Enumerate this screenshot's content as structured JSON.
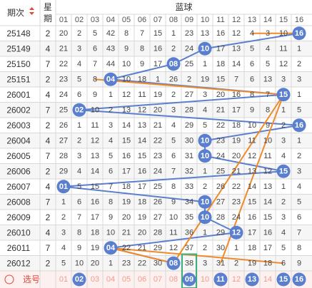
{
  "header": {
    "issue_label": "期次",
    "week_label_top": "星",
    "week_label_bottom": "期",
    "section_label": "蓝球",
    "columns": [
      "01",
      "02",
      "03",
      "04",
      "05",
      "06",
      "07",
      "08",
      "09",
      "10",
      "11",
      "12",
      "13",
      "14",
      "15",
      "16"
    ]
  },
  "rows": [
    {
      "issue": "25148",
      "week": "2",
      "cells": [
        "20",
        "2",
        "5",
        "42",
        "8",
        "7",
        "15",
        "1",
        "23",
        "13",
        "16",
        "12",
        "4",
        "3",
        "10",
        "16"
      ],
      "hit": 16
    },
    {
      "issue": "25149",
      "week": "4",
      "cells": [
        "21",
        "3",
        "6",
        "43",
        "9",
        "8",
        "16",
        "2",
        "24",
        "10",
        "17",
        "13",
        "5",
        "4",
        "11",
        "1"
      ],
      "hit": 10
    },
    {
      "issue": "25150",
      "week": "7",
      "cells": [
        "22",
        "4",
        "7",
        "44",
        "10",
        "9",
        "17",
        "08",
        "25",
        "1",
        "18",
        "14",
        "6",
        "5",
        "12",
        "2"
      ],
      "hit": 8
    },
    {
      "issue": "25151",
      "week": "2",
      "cells": [
        "23",
        "5",
        "8",
        "04",
        "10",
        "18",
        "1",
        "26",
        "2",
        "19",
        "15",
        "7",
        "6",
        "13",
        "3",
        "3"
      ],
      "hit": 4
    },
    {
      "issue": "26001",
      "week": "4",
      "cells": [
        "24",
        "6",
        "9",
        "1",
        "12",
        "11",
        "19",
        "2",
        "27",
        "3",
        "20",
        "16",
        "8",
        "7",
        "15",
        "1"
      ],
      "hit": 15
    },
    {
      "issue": "26002",
      "week": "7",
      "cells": [
        "25",
        "02",
        "10",
        "2",
        "13",
        "12",
        "20",
        "3",
        "28",
        "4",
        "21",
        "17",
        "9",
        "8",
        "1",
        "5"
      ],
      "hit": 2
    },
    {
      "issue": "26003",
      "week": "2",
      "cells": [
        "26",
        "1",
        "11",
        "3",
        "14",
        "13",
        "21",
        "4",
        "29",
        "5",
        "22",
        "18",
        "10",
        "9",
        "2",
        "16"
      ],
      "hit": 16
    },
    {
      "issue": "26004",
      "week": "4",
      "cells": [
        "27",
        "2",
        "12",
        "4",
        "15",
        "14",
        "22",
        "5",
        "30",
        "10",
        "23",
        "19",
        "11",
        "10",
        "3",
        "1"
      ],
      "hit": 10
    },
    {
      "issue": "26005",
      "week": "7",
      "cells": [
        "28",
        "3",
        "13",
        "5",
        "16",
        "15",
        "23",
        "6",
        "31",
        "10",
        "24",
        "20",
        "12",
        "11",
        "4",
        "2"
      ],
      "hit": 10
    },
    {
      "issue": "26006",
      "week": "2",
      "cells": [
        "29",
        "4",
        "14",
        "6",
        "17",
        "16",
        "24",
        "7",
        "32",
        "1",
        "25",
        "21",
        "13",
        "12",
        "15",
        "3"
      ],
      "hit": 15
    },
    {
      "issue": "26007",
      "week": "4",
      "cells": [
        "01",
        "5",
        "15",
        "7",
        "18",
        "17",
        "25",
        "8",
        "33",
        "2",
        "26",
        "22",
        "14",
        "13",
        "1",
        "4"
      ],
      "hit": 1
    },
    {
      "issue": "26008",
      "week": "7",
      "cells": [
        "1",
        "6",
        "16",
        "8",
        "19",
        "18",
        "26",
        "9",
        "34",
        "10",
        "27",
        "23",
        "15",
        "14",
        "2",
        "5"
      ],
      "hit": 10
    },
    {
      "issue": "26009",
      "week": "2",
      "cells": [
        "2",
        "7",
        "17",
        "9",
        "20",
        "19",
        "27",
        "10",
        "35",
        "10",
        "28",
        "24",
        "16",
        "15",
        "3",
        "6"
      ],
      "hit": 10
    },
    {
      "issue": "26010",
      "week": "4",
      "cells": [
        "3",
        "8",
        "18",
        "10",
        "21",
        "20",
        "28",
        "11",
        "36",
        "1",
        "29",
        "12",
        "17",
        "16",
        "4",
        "7"
      ],
      "hit": 12
    },
    {
      "issue": "26011",
      "week": "7",
      "cells": [
        "4",
        "9",
        "19",
        "04",
        "22",
        "21",
        "29",
        "12",
        "37",
        "2",
        "30",
        "1",
        "18",
        "17",
        "5",
        "8"
      ],
      "hit": 4
    },
    {
      "issue": "26012",
      "week": "2",
      "cells": [
        "5",
        "10",
        "20",
        "1",
        "23",
        "22",
        "30",
        "08",
        "38",
        "3",
        "31",
        "2",
        "19",
        "18",
        "6",
        "9"
      ],
      "hit": 8
    }
  ],
  "selector": {
    "label": "选号",
    "numbers": [
      "01",
      "02",
      "03",
      "04",
      "05",
      "06",
      "07",
      "08",
      "09",
      "10",
      "11",
      "12",
      "13",
      "14",
      "15",
      "16"
    ],
    "selected": [
      2,
      9,
      11,
      13,
      15,
      16
    ],
    "highlighted": 9
  },
  "colors": {
    "ball": "#5b7fcf",
    "trend_line": "#5b7fcf",
    "cross_line": "#ef8a2a",
    "selector_text": "#f19a8e",
    "selector_bg": "#fdf1f0",
    "highlight_box": "#3ab07a"
  }
}
